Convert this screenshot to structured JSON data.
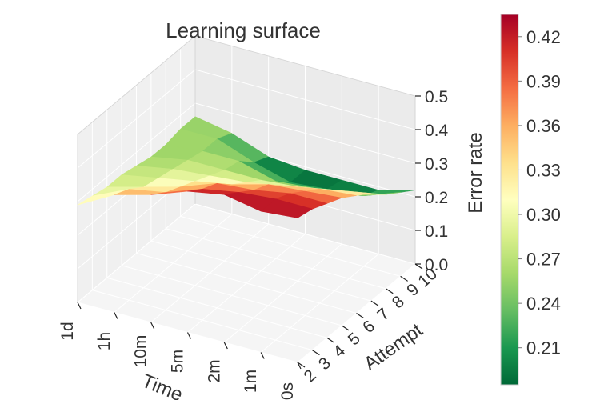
{
  "chart_data": {
    "type": "surface3d",
    "title": "Learning surface",
    "xlabel": "Time",
    "ylabel": "Attempt",
    "zlabel": "Error rate",
    "x_ticks": [
      "0s",
      "1m",
      "2m",
      "5m",
      "10m",
      "1h",
      "1d"
    ],
    "y_ticks": [
      "2",
      "3",
      "4",
      "5",
      "6",
      "7",
      "8",
      "9",
      "10"
    ],
    "z_ticks": [
      "0.0",
      "0.1",
      "0.2",
      "0.3",
      "0.4",
      "0.5"
    ],
    "zlim": [
      0,
      0.5
    ],
    "colormap": "RdYlGn_r",
    "colorbar": {
      "ticks": [
        "0.21",
        "0.24",
        "0.27",
        "0.30",
        "0.33",
        "0.36",
        "0.39",
        "0.42"
      ],
      "range": [
        0.185,
        0.435
      ]
    },
    "z_values": [
      [
        0.43,
        0.42,
        0.4,
        0.38,
        0.35,
        0.32,
        0.28,
        0.25,
        0.22
      ],
      [
        0.42,
        0.42,
        0.4,
        0.37,
        0.34,
        0.3,
        0.25,
        0.21,
        0.19
      ],
      [
        0.44,
        0.41,
        0.38,
        0.36,
        0.32,
        0.28,
        0.24,
        0.2,
        0.19
      ],
      [
        0.42,
        0.39,
        0.37,
        0.33,
        0.3,
        0.27,
        0.23,
        0.19,
        0.19
      ],
      [
        0.38,
        0.35,
        0.33,
        0.31,
        0.29,
        0.27,
        0.26,
        0.22,
        0.2
      ],
      [
        0.35,
        0.33,
        0.3,
        0.29,
        0.28,
        0.27,
        0.26,
        0.26,
        0.24
      ],
      [
        0.29,
        0.28,
        0.27,
        0.27,
        0.26,
        0.25,
        0.25,
        0.26,
        0.26
      ]
    ]
  }
}
